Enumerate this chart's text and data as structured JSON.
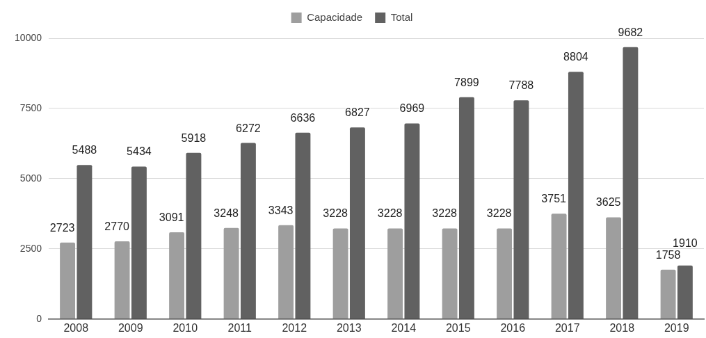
{
  "chart_data": {
    "type": "bar",
    "categories": [
      "2008",
      "2009",
      "2010",
      "2011",
      "2012",
      "2013",
      "2014",
      "2015",
      "2016",
      "2017",
      "2018",
      "2019"
    ],
    "series": [
      {
        "name": "Capacidade",
        "color": "#9e9e9e",
        "values": [
          2723,
          2770,
          3091,
          3248,
          3343,
          3228,
          3228,
          3228,
          3228,
          3751,
          3625,
          1758
        ]
      },
      {
        "name": "Total",
        "color": "#616161",
        "values": [
          5488,
          5434,
          5918,
          6272,
          6636,
          6827,
          6969,
          7899,
          7788,
          8804,
          9682,
          1910
        ]
      }
    ],
    "ylim": [
      0,
      10000
    ],
    "yticks": [
      0,
      2500,
      5000,
      7500,
      10000
    ],
    "grid": "y",
    "legend": "top",
    "data_labels": true
  }
}
